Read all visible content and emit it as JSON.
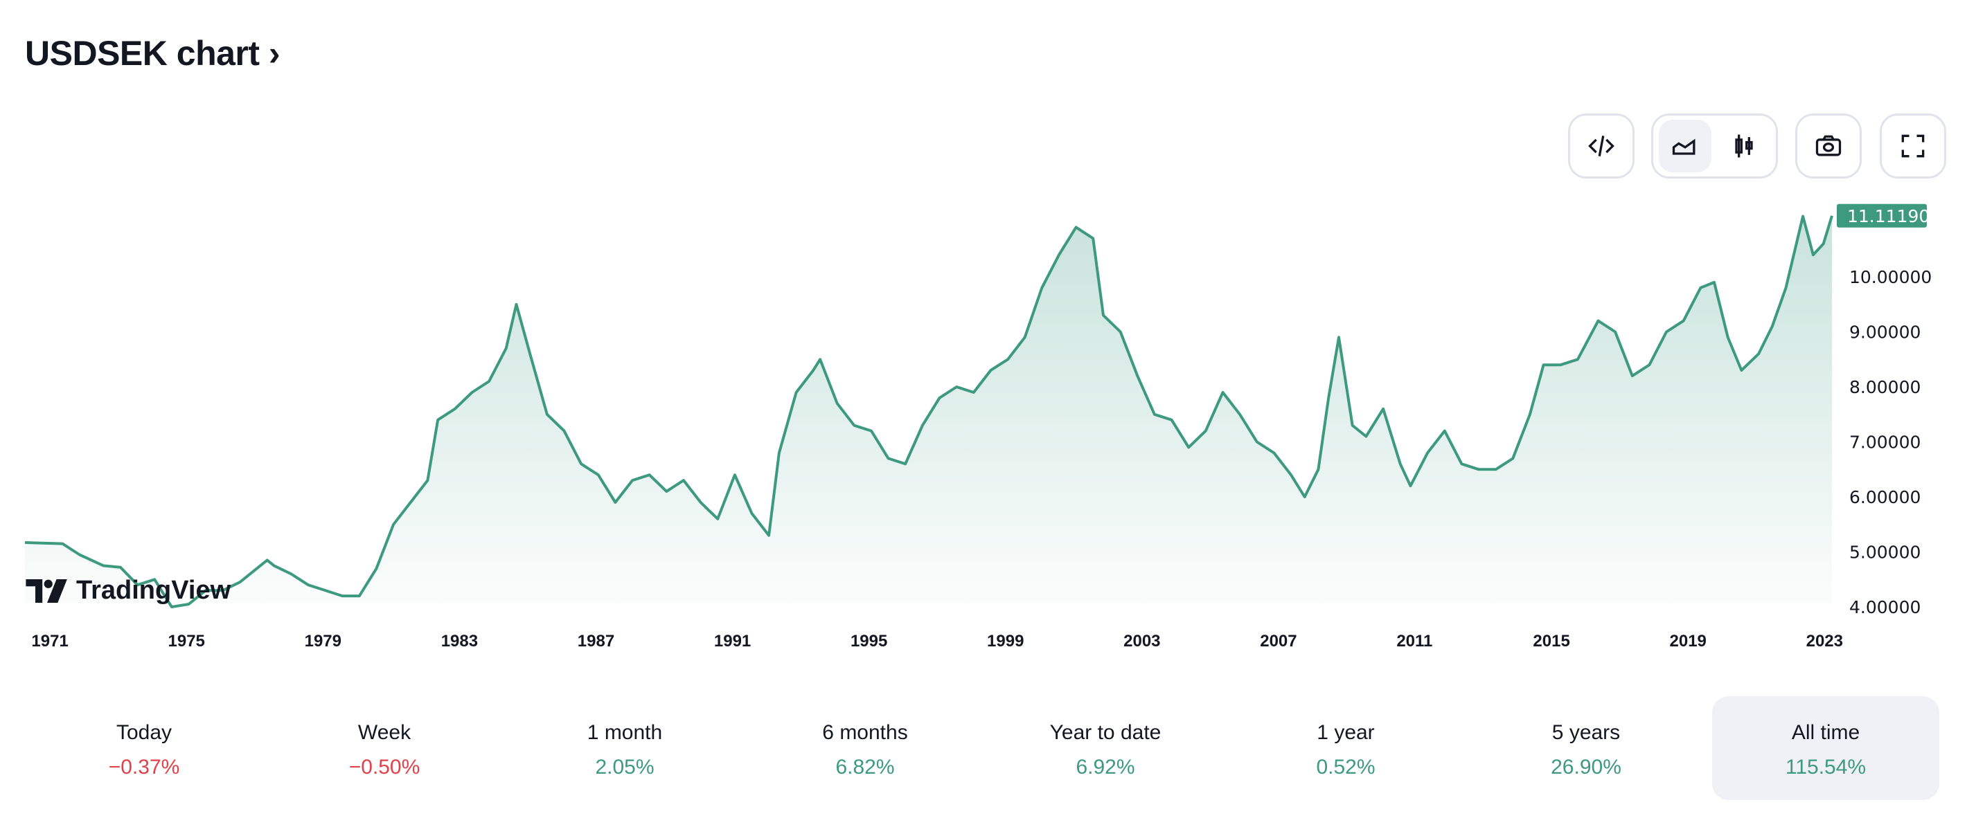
{
  "header": {
    "title": "USDSEK chart ›"
  },
  "toolbar": {
    "embed": "code-icon",
    "area": "area-chart-icon",
    "candles": "candlestick-icon",
    "snapshot": "camera-icon",
    "fullscreen": "fullscreen-icon"
  },
  "logo": {
    "text": "TradingView"
  },
  "colors": {
    "line": "#3d9a7f",
    "negative": "#e0424b",
    "positive": "#3d9a7f"
  },
  "chart_data": {
    "type": "area",
    "title": "USDSEK",
    "xlabel": "",
    "ylabel": "",
    "ylim": [
      4,
      11.5
    ],
    "xlim": [
      1970.7,
      2023.65
    ],
    "last_price": "11.11190",
    "yticks": [
      "4.00000",
      "5.00000",
      "6.00000",
      "7.00000",
      "8.00000",
      "9.00000",
      "10.00000"
    ],
    "ytick_values": [
      4,
      5,
      6,
      7,
      8,
      9,
      10
    ],
    "xticks": [
      "1971",
      "1975",
      "1979",
      "1983",
      "1987",
      "1991",
      "1995",
      "1999",
      "2003",
      "2007",
      "2011",
      "2015",
      "2019",
      "2023"
    ],
    "x": [
      1970.7,
      1971.8,
      1972.3,
      1973,
      1973.5,
      1974,
      1974.5,
      1975,
      1975.5,
      1976,
      1976.5,
      1977,
      1977.8,
      1978,
      1978.5,
      1979,
      1979.5,
      1980,
      1980.5,
      1981,
      1981.5,
      1982,
      1982.5,
      1982.8,
      1983.3,
      1983.8,
      1984.3,
      1984.8,
      1985.1,
      1985.5,
      1986,
      1986.5,
      1987,
      1987.5,
      1988,
      1988.5,
      1989,
      1989.5,
      1990,
      1990.5,
      1991,
      1991.5,
      1992,
      1992.5,
      1992.8,
      1993.3,
      1993.8,
      1994,
      1994.5,
      1995,
      1995.5,
      1996,
      1996.5,
      1997,
      1997.5,
      1998,
      1998.5,
      1999,
      1999.5,
      2000,
      2000.5,
      2001,
      2001.5,
      2002,
      2002.3,
      2002.8,
      2003.3,
      2003.8,
      2004.3,
      2004.8,
      2005.3,
      2005.8,
      2006.3,
      2006.8,
      2007.3,
      2007.8,
      2008.2,
      2008.6,
      2008.9,
      2009.2,
      2009.6,
      2010,
      2010.5,
      2011,
      2011.3,
      2011.8,
      2012.3,
      2012.8,
      2013.3,
      2013.8,
      2014.3,
      2014.8,
      2015.2,
      2015.7,
      2016.2,
      2016.8,
      2017.3,
      2017.8,
      2018.3,
      2018.8,
      2019.3,
      2019.8,
      2020.2,
      2020.6,
      2021,
      2021.5,
      2021.9,
      2022.3,
      2022.8,
      2023.1,
      2023.4,
      2023.65
    ],
    "values": [
      5.17,
      5.15,
      4.95,
      4.75,
      4.72,
      4.4,
      4.5,
      4.0,
      4.05,
      4.3,
      4.3,
      4.45,
      4.85,
      4.75,
      4.6,
      4.4,
      4.3,
      4.2,
      4.2,
      4.7,
      5.5,
      5.9,
      6.3,
      7.4,
      7.6,
      7.9,
      8.1,
      8.7,
      9.5,
      8.6,
      7.5,
      7.2,
      6.6,
      6.4,
      5.9,
      6.3,
      6.4,
      6.1,
      6.3,
      5.9,
      5.6,
      6.4,
      5.7,
      5.3,
      6.8,
      7.9,
      8.3,
      8.5,
      7.7,
      7.3,
      7.2,
      6.7,
      6.6,
      7.3,
      7.8,
      8.0,
      7.9,
      8.3,
      8.5,
      8.9,
      9.8,
      10.4,
      10.9,
      10.7,
      9.3,
      9.0,
      8.2,
      7.5,
      7.4,
      6.9,
      7.2,
      7.9,
      7.5,
      7.0,
      6.8,
      6.4,
      6.0,
      6.5,
      7.8,
      8.9,
      7.3,
      7.1,
      7.6,
      6.6,
      6.2,
      6.8,
      7.2,
      6.6,
      6.5,
      6.5,
      6.7,
      7.5,
      8.4,
      8.4,
      8.5,
      9.2,
      9.0,
      8.2,
      8.4,
      9.0,
      9.2,
      9.8,
      9.9,
      8.9,
      8.3,
      8.6,
      9.1,
      9.8,
      11.1,
      10.4,
      10.6,
      11.11
    ]
  },
  "performance": [
    {
      "label": "Today",
      "value": "−0.37%",
      "trend": "negative"
    },
    {
      "label": "Week",
      "value": "−0.50%",
      "trend": "negative"
    },
    {
      "label": "1 month",
      "value": "2.05%",
      "trend": "positive"
    },
    {
      "label": "6 months",
      "value": "6.82%",
      "trend": "positive"
    },
    {
      "label": "Year to date",
      "value": "6.92%",
      "trend": "positive"
    },
    {
      "label": "1 year",
      "value": "0.52%",
      "trend": "positive"
    },
    {
      "label": "5 years",
      "value": "26.90%",
      "trend": "positive"
    },
    {
      "label": "All time",
      "value": "115.54%",
      "trend": "positive",
      "selected": true
    }
  ]
}
